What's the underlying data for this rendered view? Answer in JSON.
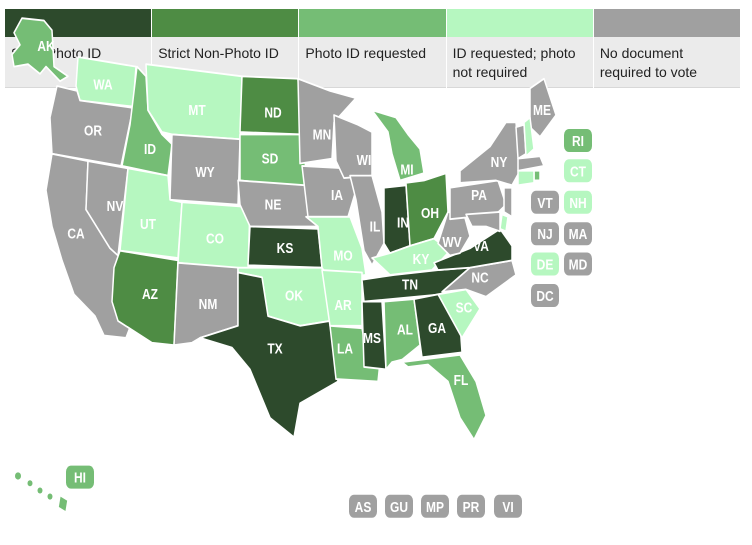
{
  "legend": [
    {
      "key": "strict_photo",
      "label": "Strict Photo ID",
      "color": "#2d4a2c"
    },
    {
      "key": "strict_nonphoto",
      "label": "Strict Non-Photo ID",
      "color": "#4e8c44"
    },
    {
      "key": "photo_requested",
      "label": "Photo ID requested",
      "color": "#75bd75"
    },
    {
      "key": "id_requested",
      "label": "ID requested; photo not required",
      "color": "#b6f7c0"
    },
    {
      "key": "none",
      "label": "No document required to vote",
      "color": "#a0a0a0"
    }
  ],
  "states": [
    {
      "abbr": "AK",
      "category": "photo_requested"
    },
    {
      "abbr": "HI",
      "category": "photo_requested"
    },
    {
      "abbr": "WA",
      "category": "id_requested"
    },
    {
      "abbr": "OR",
      "category": "none"
    },
    {
      "abbr": "CA",
      "category": "none"
    },
    {
      "abbr": "NV",
      "category": "none"
    },
    {
      "abbr": "ID",
      "category": "photo_requested"
    },
    {
      "abbr": "MT",
      "category": "id_requested"
    },
    {
      "abbr": "WY",
      "category": "none"
    },
    {
      "abbr": "UT",
      "category": "id_requested"
    },
    {
      "abbr": "CO",
      "category": "id_requested"
    },
    {
      "abbr": "AZ",
      "category": "strict_nonphoto"
    },
    {
      "abbr": "NM",
      "category": "none"
    },
    {
      "abbr": "ND",
      "category": "strict_nonphoto"
    },
    {
      "abbr": "SD",
      "category": "photo_requested"
    },
    {
      "abbr": "NE",
      "category": "none"
    },
    {
      "abbr": "KS",
      "category": "strict_photo"
    },
    {
      "abbr": "OK",
      "category": "id_requested"
    },
    {
      "abbr": "TX",
      "category": "strict_photo"
    },
    {
      "abbr": "MN",
      "category": "none"
    },
    {
      "abbr": "IA",
      "category": "none"
    },
    {
      "abbr": "MO",
      "category": "id_requested"
    },
    {
      "abbr": "AR",
      "category": "id_requested"
    },
    {
      "abbr": "LA",
      "category": "photo_requested"
    },
    {
      "abbr": "WI",
      "category": "none"
    },
    {
      "abbr": "IL",
      "category": "none"
    },
    {
      "abbr": "MI",
      "category": "photo_requested"
    },
    {
      "abbr": "IN",
      "category": "strict_photo"
    },
    {
      "abbr": "OH",
      "category": "strict_nonphoto"
    },
    {
      "abbr": "KY",
      "category": "id_requested"
    },
    {
      "abbr": "TN",
      "category": "strict_photo"
    },
    {
      "abbr": "MS",
      "category": "strict_photo"
    },
    {
      "abbr": "AL",
      "category": "photo_requested"
    },
    {
      "abbr": "GA",
      "category": "strict_photo"
    },
    {
      "abbr": "FL",
      "category": "photo_requested"
    },
    {
      "abbr": "SC",
      "category": "id_requested"
    },
    {
      "abbr": "NC",
      "category": "none"
    },
    {
      "abbr": "VA",
      "category": "strict_photo"
    },
    {
      "abbr": "WV",
      "category": "none"
    },
    {
      "abbr": "PA",
      "category": "none"
    },
    {
      "abbr": "NY",
      "category": "none"
    },
    {
      "abbr": "ME",
      "category": "none"
    },
    {
      "abbr": "VT",
      "category": "none"
    },
    {
      "abbr": "NH",
      "category": "id_requested"
    },
    {
      "abbr": "MA",
      "category": "none"
    },
    {
      "abbr": "RI",
      "category": "photo_requested"
    },
    {
      "abbr": "CT",
      "category": "id_requested"
    },
    {
      "abbr": "NJ",
      "category": "none"
    },
    {
      "abbr": "DE",
      "category": "id_requested"
    },
    {
      "abbr": "MD",
      "category": "none"
    },
    {
      "abbr": "DC",
      "category": "none"
    }
  ],
  "territories": [
    {
      "abbr": "AS",
      "category": "none"
    },
    {
      "abbr": "GU",
      "category": "none"
    },
    {
      "abbr": "MP",
      "category": "none"
    },
    {
      "abbr": "PR",
      "category": "none"
    },
    {
      "abbr": "VI",
      "category": "none"
    }
  ]
}
